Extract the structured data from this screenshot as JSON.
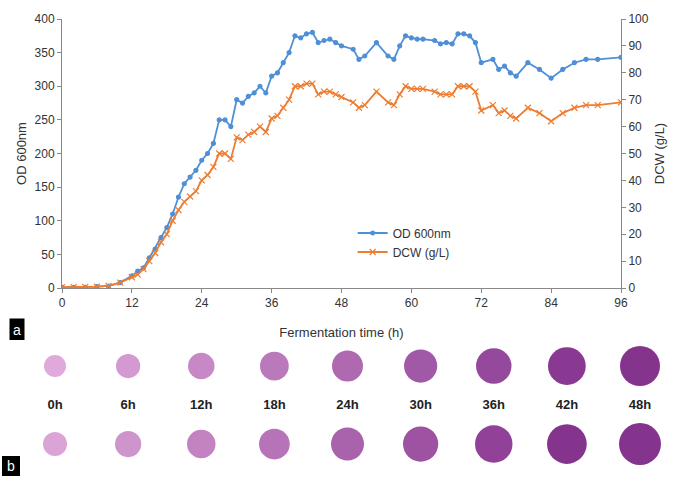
{
  "chart_data": {
    "type": "line",
    "panel_label": "a",
    "x_label": "Fermentation time (h)",
    "y_label": "OD 600nm",
    "y2_label": "DCW (g/L)",
    "x": [
      0,
      2,
      4,
      6,
      8,
      10,
      12,
      13,
      14,
      15,
      16,
      17,
      18,
      19,
      20,
      21,
      22,
      23,
      24,
      25,
      26,
      27,
      28,
      29,
      30,
      31,
      32,
      33,
      34,
      35,
      36,
      37,
      38,
      39,
      40,
      41,
      42,
      43,
      44,
      45,
      46,
      47,
      48,
      50,
      51,
      52,
      54,
      56,
      57,
      58,
      59,
      60,
      61,
      62,
      64,
      65,
      66,
      67,
      68,
      69,
      70,
      71,
      72,
      74,
      75,
      76,
      77,
      78,
      80,
      82,
      84,
      86,
      88,
      90,
      92,
      96
    ],
    "series": [
      {
        "name": "OD 600nm",
        "color": "#4f8fd6",
        "marker": "circle",
        "axis": "y",
        "values": [
          1,
          1,
          1,
          2,
          3,
          8,
          18,
          25,
          30,
          45,
          58,
          75,
          90,
          110,
          135,
          155,
          165,
          175,
          190,
          200,
          215,
          250,
          250,
          240,
          280,
          275,
          285,
          290,
          300,
          290,
          315,
          320,
          335,
          350,
          375,
          372,
          378,
          380,
          365,
          368,
          370,
          365,
          360,
          355,
          340,
          345,
          365,
          345,
          340,
          360,
          375,
          372,
          370,
          370,
          368,
          363,
          365,
          363,
          378,
          378,
          375,
          365,
          335,
          340,
          325,
          330,
          320,
          315,
          335,
          325,
          312,
          325,
          335,
          340,
          340,
          343
        ]
      },
      {
        "name": "DCW (g/L)",
        "color": "#ed7d31",
        "marker": "x",
        "axis": "y2",
        "values": [
          0.3,
          0.3,
          0.4,
          0.5,
          0.8,
          2,
          4,
          5,
          7,
          10,
          13,
          17,
          20,
          25,
          29,
          32,
          34,
          36,
          40,
          42,
          45,
          50,
          50,
          48,
          56,
          55,
          57,
          58,
          60,
          58,
          63,
          64,
          67,
          70,
          75,
          75,
          76,
          76,
          72,
          73,
          73,
          72,
          71,
          69,
          67,
          68,
          73,
          69,
          68,
          72,
          75,
          74,
          74,
          74,
          73,
          72,
          72,
          72,
          75,
          75,
          75,
          73,
          66,
          68,
          65,
          66,
          64,
          63,
          67,
          65,
          62,
          65,
          67,
          68,
          68,
          69
        ]
      }
    ],
    "xlim": [
      0,
      96
    ],
    "xticks": [
      0,
      12,
      24,
      36,
      48,
      60,
      72,
      84,
      96
    ],
    "ylim": [
      0,
      400
    ],
    "yticks": [
      0,
      50,
      100,
      150,
      200,
      250,
      300,
      350,
      400
    ],
    "y2lim": [
      0,
      100
    ],
    "y2ticks": [
      0,
      10,
      20,
      30,
      40,
      50,
      60,
      70,
      80,
      90,
      100
    ],
    "grid": false,
    "legend": "lower right"
  },
  "colony_panel": {
    "panel_label": "b",
    "time_labels": [
      "0h",
      "6h",
      "12h",
      "18h",
      "24h",
      "30h",
      "36h",
      "42h",
      "48h"
    ]
  }
}
